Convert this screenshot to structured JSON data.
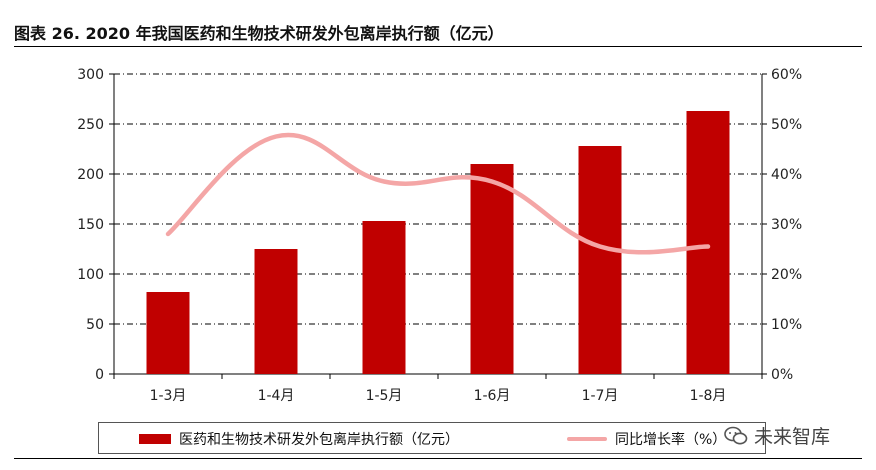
{
  "header": {
    "title": "图表 26. 2020 年我国医药和生物技术研发外包离岸执行额（亿元）"
  },
  "watermark": {
    "text": "未来智库",
    "icon": "wechat-icon"
  },
  "colors": {
    "bar": "#c00000",
    "line": "#f4a6a6",
    "grid": "#000000"
  },
  "chart_data": {
    "type": "bar",
    "categories": [
      "1-3月",
      "1-4月",
      "1-5月",
      "1-6月",
      "1-7月",
      "1-8月"
    ],
    "series": [
      {
        "name": "医药和生物技术研发外包离岸执行额（亿元）",
        "type": "bar",
        "axis": "left",
        "values": [
          82,
          125,
          153,
          210,
          228,
          263
        ]
      },
      {
        "name": "同比增长率（%）",
        "type": "line",
        "axis": "right",
        "smooth": true,
        "values": [
          28,
          47.5,
          38.5,
          38.5,
          25.5,
          25.5
        ]
      }
    ],
    "y_left": {
      "lim": [
        0,
        300
      ],
      "ticks": [
        0,
        50,
        100,
        150,
        200,
        250,
        300
      ]
    },
    "y_right": {
      "lim": [
        0,
        60
      ],
      "ticks": [
        "0%",
        "10%",
        "20%",
        "30%",
        "40%",
        "50%",
        "60%"
      ]
    },
    "grid": "dashed horizontal",
    "legend": "bottom"
  }
}
